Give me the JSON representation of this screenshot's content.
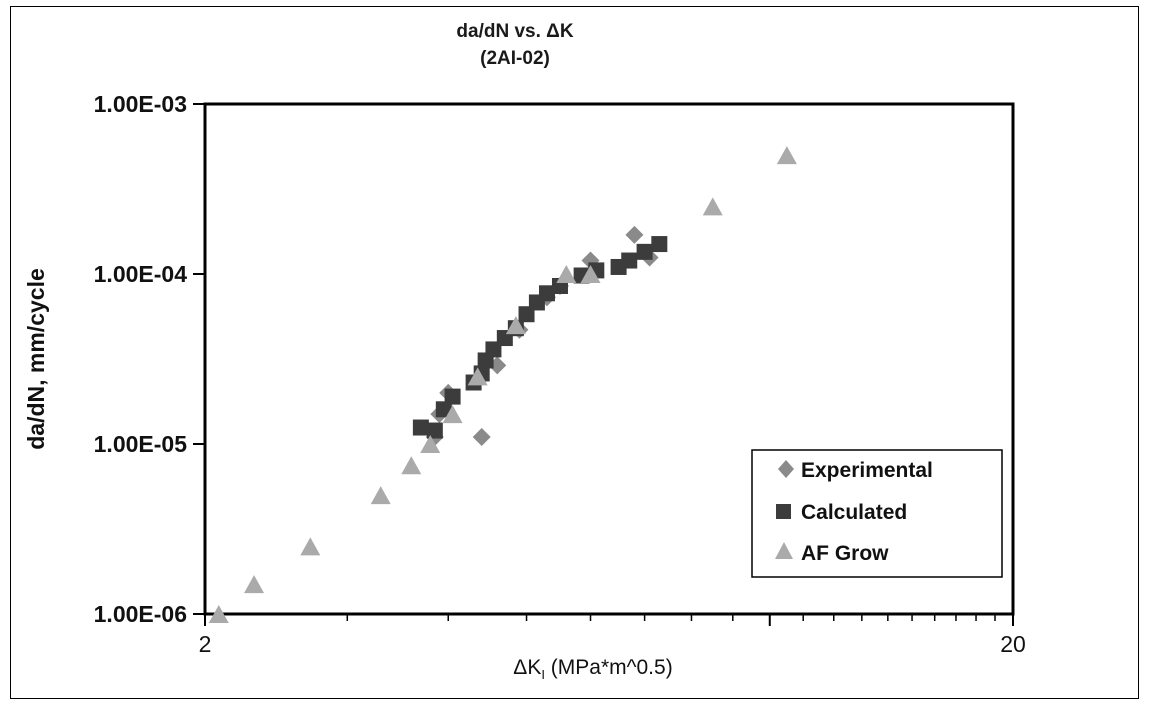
{
  "chart_data": {
    "type": "scatter",
    "title": "da/dN vs. ΔK",
    "subtitle": "(2AI-02)",
    "xlabel": "ΔK",
    "xlabel_subscript": "I",
    "xlabel_unit": " (MPa*m^0.5)",
    "ylabel": "da/dN, mm/cycle",
    "x_scale": "log",
    "y_scale": "log",
    "xlim": [
      2,
      20
    ],
    "ylim": [
      1e-06,
      0.001
    ],
    "x_ticks": [
      {
        "value": 2,
        "label": "2"
      },
      {
        "value": 20,
        "label": "20"
      }
    ],
    "y_ticks": [
      {
        "value": 1e-06,
        "label": "1.00E-06"
      },
      {
        "value": 1e-05,
        "label": "1.00E-05"
      },
      {
        "value": 0.0001,
        "label": "1.00E-04"
      },
      {
        "value": 0.001,
        "label": "1.00E-03"
      }
    ],
    "grid": false,
    "legend_position": "bottom-right",
    "series": [
      {
        "name": "Experimental",
        "marker": "diamond",
        "color": "#8a8a8a",
        "x": [
          4.0,
          3.85,
          3.9,
          4.4,
          4.6,
          4.9,
          5.3,
          5.5,
          6.0,
          6.8,
          7.1
        ],
        "y": [
          2e-05,
          1.1e-05,
          1.5e-05,
          1.1e-05,
          2.9e-05,
          4.7e-05,
          7.3e-05,
          8.5e-05,
          0.00012,
          0.00017,
          0.000125
        ]
      },
      {
        "name": "Calculated",
        "marker": "square",
        "color": "#3c3c3c",
        "x": [
          3.7,
          3.85,
          3.95,
          4.05,
          4.3,
          4.4,
          4.45,
          4.55,
          4.7,
          4.85,
          5.0,
          5.15,
          5.3,
          5.5,
          5.85,
          6.1,
          6.5,
          6.7,
          7.0,
          7.3
        ],
        "y": [
          1.25e-05,
          1.2e-05,
          1.6e-05,
          1.9e-05,
          2.3e-05,
          2.6e-05,
          3.1e-05,
          3.6e-05,
          4.2e-05,
          4.8e-05,
          5.8e-05,
          6.8e-05,
          7.7e-05,
          8.5e-05,
          9.8e-05,
          0.000105,
          0.00011,
          0.00012,
          0.000135,
          0.00015
        ]
      },
      {
        "name": "AF Grow",
        "marker": "triangle",
        "color": "#aaaaaa",
        "x": [
          2.08,
          2.3,
          2.7,
          3.3,
          3.6,
          3.8,
          4.05,
          4.35,
          4.85,
          5.6,
          6.0,
          8.5,
          10.5
        ],
        "y": [
          1e-06,
          1.5e-06,
          2.5e-06,
          5e-06,
          7.5e-06,
          1e-05,
          1.5e-05,
          2.5e-05,
          5e-05,
          0.0001,
          0.0001,
          0.00025,
          0.0005
        ]
      }
    ]
  }
}
